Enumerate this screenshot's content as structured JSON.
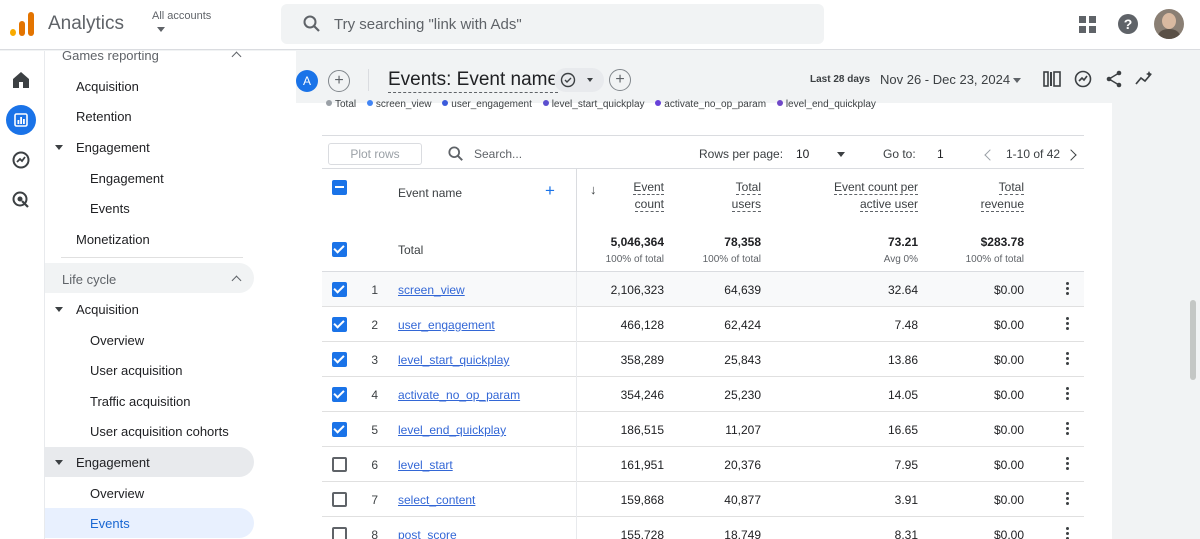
{
  "header": {
    "app_name": "Analytics",
    "account": "All accounts",
    "search_placeholder": "Try searching \"link with Ads\""
  },
  "sidebar": {
    "games_reporting": "Games reporting",
    "items_top": [
      "Acquisition",
      "Retention"
    ],
    "engagement_group": "Engagement",
    "engagement_children": [
      "Engagement",
      "Events"
    ],
    "monetization": "Monetization",
    "life_cycle": "Life cycle",
    "lc_acquisition": "Acquisition",
    "lc_acquisition_children": [
      "Overview",
      "User acquisition",
      "Traffic acquisition",
      "User acquisition cohorts"
    ],
    "lc_engagement": "Engagement",
    "lc_engagement_children": [
      "Overview",
      "Events"
    ]
  },
  "report": {
    "avatar_letter": "A",
    "title": "Events: Event name",
    "date_label": "Last 28 days",
    "date_range": "Nov 26 - Dec 23, 2024"
  },
  "legend": [
    "Total",
    "screen_view",
    "user_engagement",
    "level_start_quickplay",
    "activate_no_op_param",
    "level_end_quickplay"
  ],
  "controls": {
    "plot_rows": "Plot rows",
    "search_placeholder": "Search...",
    "rows_per_page_label": "Rows per page:",
    "rows_per_page": "10",
    "goto_label": "Go to:",
    "goto_value": "1",
    "pagination": "1-10 of 42"
  },
  "table": {
    "col_event_name": "Event name",
    "col_event_count": [
      "Event",
      "count"
    ],
    "col_total_users": [
      "Total",
      "users"
    ],
    "col_per_user": [
      "Event count per",
      "active user"
    ],
    "col_revenue": [
      "Total",
      "revenue"
    ],
    "totals": {
      "label": "Total",
      "event_count": "5,046,364",
      "event_count_sub": "100% of total",
      "total_users": "78,358",
      "total_users_sub": "100% of total",
      "per_user": "73.21",
      "per_user_sub": "Avg 0%",
      "revenue": "$283.78",
      "revenue_sub": "100% of total"
    },
    "rows": [
      {
        "idx": "1",
        "name": "screen_view",
        "count": "2,106,323",
        "users": "64,639",
        "per_user": "32.64",
        "revenue": "$0.00",
        "checked": true
      },
      {
        "idx": "2",
        "name": "user_engagement",
        "count": "466,128",
        "users": "62,424",
        "per_user": "7.48",
        "revenue": "$0.00",
        "checked": true
      },
      {
        "idx": "3",
        "name": "level_start_quickplay",
        "count": "358,289",
        "users": "25,843",
        "per_user": "13.86",
        "revenue": "$0.00",
        "checked": true
      },
      {
        "idx": "4",
        "name": "activate_no_op_param",
        "count": "354,246",
        "users": "25,230",
        "per_user": "14.05",
        "revenue": "$0.00",
        "checked": true
      },
      {
        "idx": "5",
        "name": "level_end_quickplay",
        "count": "186,515",
        "users": "11,207",
        "per_user": "16.65",
        "revenue": "$0.00",
        "checked": true
      },
      {
        "idx": "6",
        "name": "level_start",
        "count": "161,951",
        "users": "20,376",
        "per_user": "7.95",
        "revenue": "$0.00",
        "checked": false
      },
      {
        "idx": "7",
        "name": "select_content",
        "count": "159,868",
        "users": "40,877",
        "per_user": "3.91",
        "revenue": "$0.00",
        "checked": false
      },
      {
        "idx": "8",
        "name": "post_score",
        "count": "155,728",
        "users": "18,749",
        "per_user": "8.31",
        "revenue": "$0.00",
        "checked": false
      }
    ]
  },
  "colors": {
    "accent": "#1a73e8",
    "legend_total": "#9aa0a6",
    "legend_series": [
      "#4285f4",
      "#3b5bdb",
      "#5b4fcf",
      "#6741d9",
      "#7048c8"
    ]
  }
}
